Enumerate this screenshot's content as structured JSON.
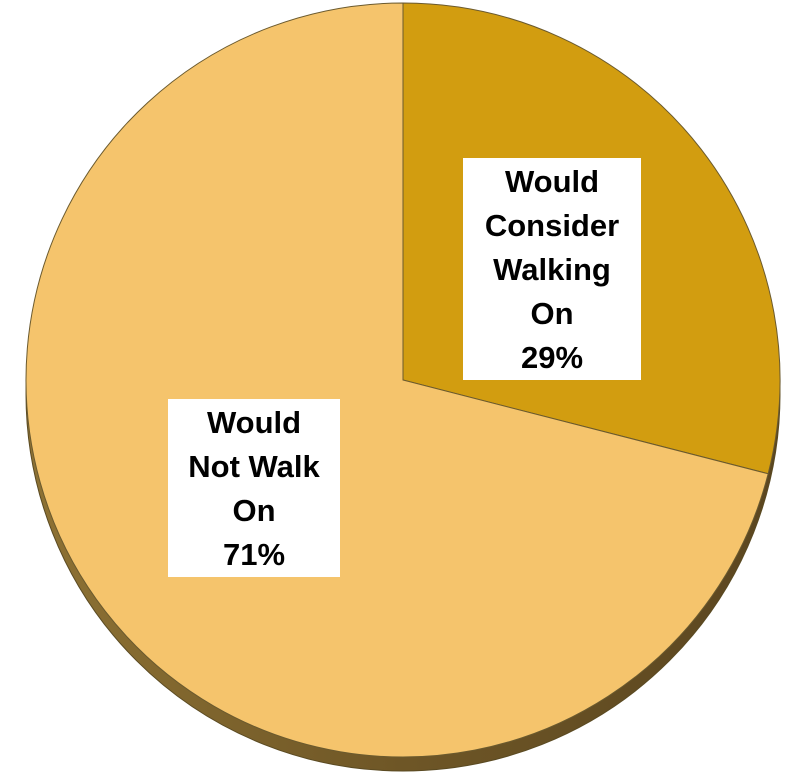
{
  "chart_data": {
    "type": "pie",
    "title": "",
    "slices": [
      {
        "label_lines": [
          "Would",
          "Consider",
          "Walking",
          "On"
        ],
        "value_label": "29%",
        "value": 29,
        "color": "#d29d10"
      },
      {
        "label_lines": [
          "Would",
          "Not Walk",
          "On"
        ],
        "value_label": "71%",
        "value": 71,
        "color": "#f5c46c"
      }
    ],
    "edge_color": "#8e7234"
  }
}
